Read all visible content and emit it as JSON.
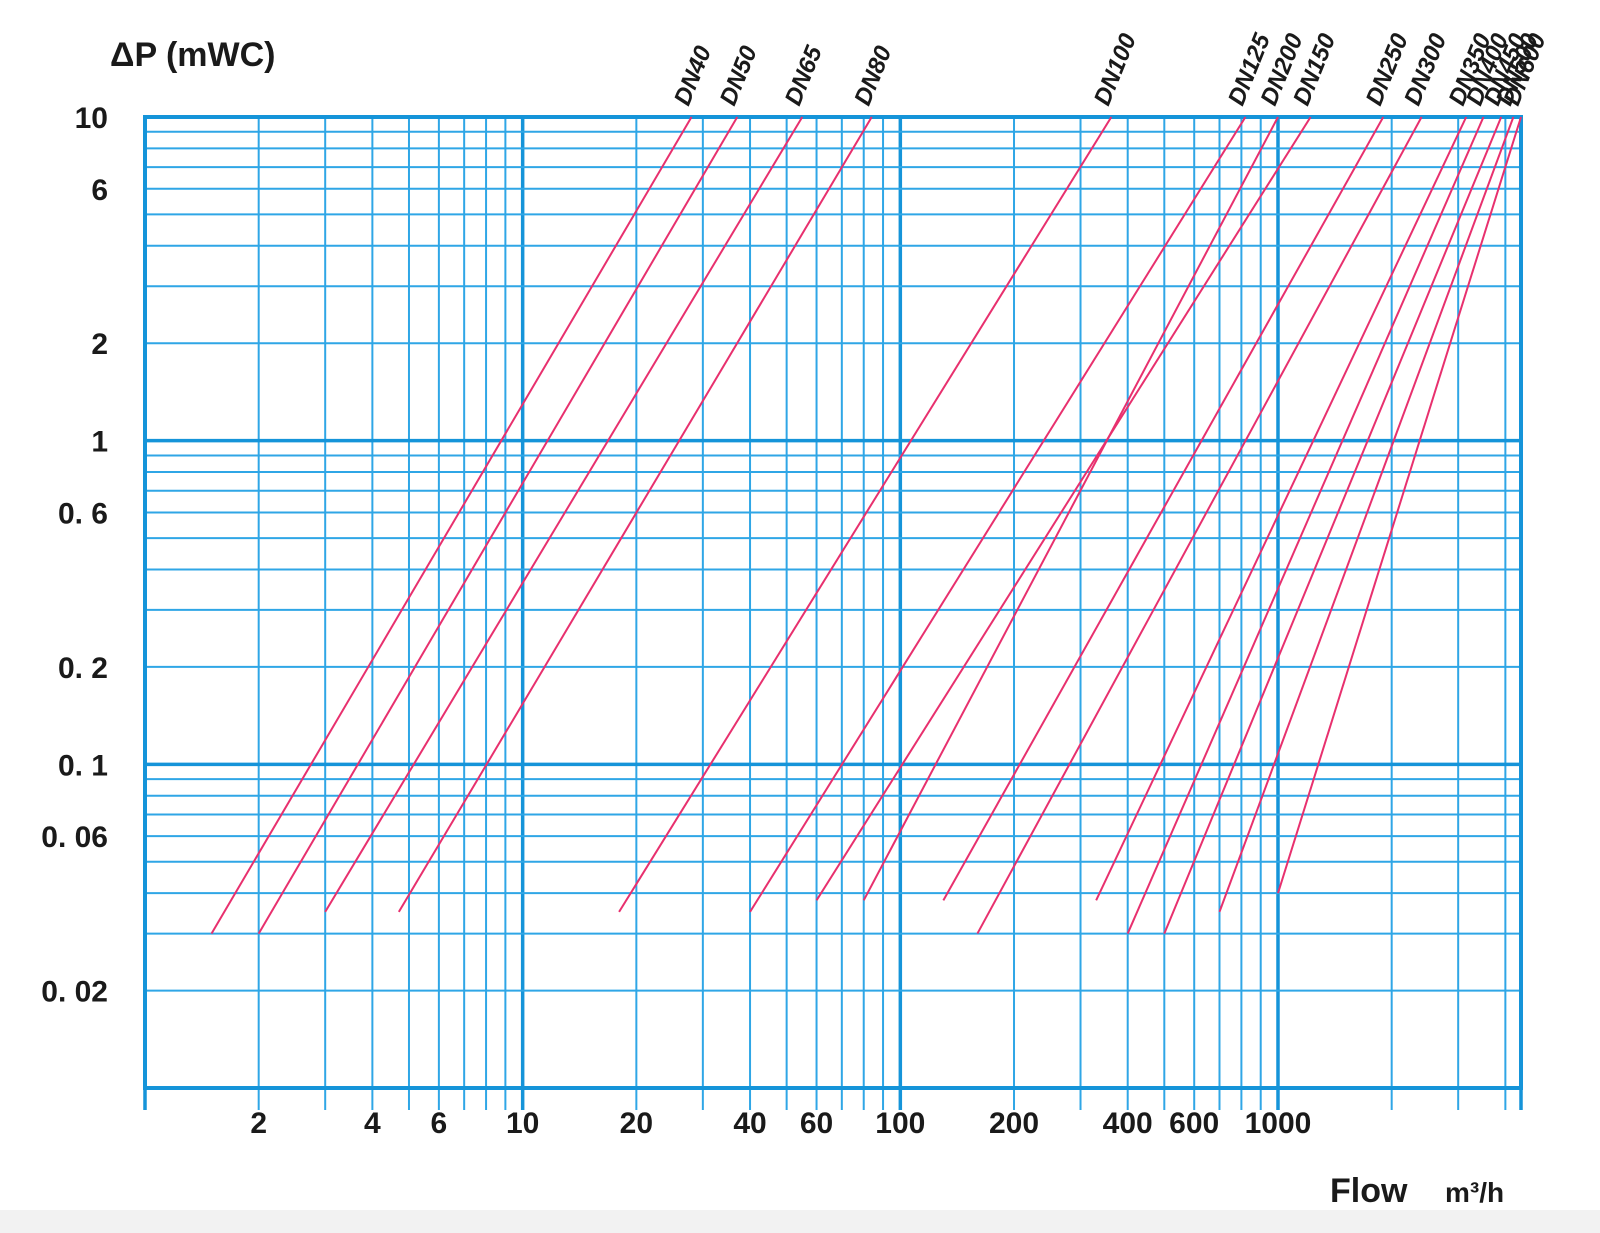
{
  "chart_data": {
    "type": "line",
    "ylabel": "ΔP (mWC)",
    "xlabel": "Flow",
    "xlabel_unit": "m³/h",
    "x_scale": "log",
    "y_scale": "log",
    "xlim": [
      1,
      4400
    ],
    "ylim": [
      0.01,
      10
    ],
    "grid": true,
    "x_ticks": [
      {
        "value": 2,
        "label": "2"
      },
      {
        "value": 4,
        "label": "4"
      },
      {
        "value": 6,
        "label": "6"
      },
      {
        "value": 10,
        "label": "10"
      },
      {
        "value": 20,
        "label": "20"
      },
      {
        "value": 40,
        "label": "40"
      },
      {
        "value": 60,
        "label": "60"
      },
      {
        "value": 100,
        "label": "100"
      },
      {
        "value": 200,
        "label": "200"
      },
      {
        "value": 400,
        "label": "400"
      },
      {
        "value": 600,
        "label": "600"
      },
      {
        "value": 1000,
        "label": "1000"
      }
    ],
    "y_ticks": [
      {
        "value": 10,
        "label": "10"
      },
      {
        "value": 6,
        "label": "6"
      },
      {
        "value": 2,
        "label": "2"
      },
      {
        "value": 1,
        "label": "1"
      },
      {
        "value": 0.6,
        "label": "0. 6"
      },
      {
        "value": 0.2,
        "label": "0. 2"
      },
      {
        "value": 0.1,
        "label": "0. 1"
      },
      {
        "value": 0.06,
        "label": "0. 06"
      },
      {
        "value": 0.02,
        "label": "0. 02"
      }
    ],
    "x_minor_grid": [
      2,
      3,
      4,
      5,
      6,
      7,
      8,
      9,
      20,
      30,
      40,
      50,
      60,
      70,
      80,
      90,
      200,
      300,
      400,
      500,
      600,
      700,
      800,
      900,
      2000,
      3000,
      4000
    ],
    "x_major_grid": [
      1,
      10,
      100,
      1000,
      4400
    ],
    "y_minor_grid": [
      0.02,
      0.03,
      0.04,
      0.05,
      0.06,
      0.07,
      0.08,
      0.09,
      0.2,
      0.3,
      0.4,
      0.5,
      0.6,
      0.7,
      0.8,
      0.9,
      2,
      3,
      4,
      5,
      6,
      7,
      8,
      9
    ],
    "y_major_grid": [
      0.01,
      0.1,
      1,
      10
    ],
    "series": [
      {
        "name": "DN40",
        "points": [
          [
            1.5,
            0.03
          ],
          [
            28,
            10
          ]
        ]
      },
      {
        "name": "DN50",
        "points": [
          [
            2,
            0.03
          ],
          [
            37,
            10
          ]
        ]
      },
      {
        "name": "DN65",
        "points": [
          [
            3,
            0.035
          ],
          [
            55,
            10
          ]
        ]
      },
      {
        "name": "DN80",
        "points": [
          [
            4.7,
            0.035
          ],
          [
            84,
            10
          ]
        ]
      },
      {
        "name": "DN100",
        "points": [
          [
            18,
            0.035
          ],
          [
            362,
            10
          ]
        ]
      },
      {
        "name": "DN125",
        "points": [
          [
            40,
            0.035
          ],
          [
            820,
            10
          ]
        ]
      },
      {
        "name": "DN150",
        "points": [
          [
            60,
            0.038
          ],
          [
            1220,
            10
          ]
        ]
      },
      {
        "name": "DN200",
        "points": [
          [
            80,
            0.038
          ],
          [
            1000,
            10
          ]
        ]
      },
      {
        "name": "DN250",
        "points": [
          [
            130,
            0.038
          ],
          [
            1900,
            10
          ]
        ]
      },
      {
        "name": "DN300",
        "points": [
          [
            160,
            0.03
          ],
          [
            2400,
            10
          ]
        ]
      },
      {
        "name": "DN350",
        "points": [
          [
            330,
            0.038
          ],
          [
            3150,
            10
          ]
        ]
      },
      {
        "name": "DN400",
        "points": [
          [
            400,
            0.03
          ],
          [
            3500,
            10
          ]
        ]
      },
      {
        "name": "DN450",
        "points": [
          [
            500,
            0.03
          ],
          [
            3900,
            10
          ]
        ]
      },
      {
        "name": "DN500",
        "points": [
          [
            700,
            0.035
          ],
          [
            4200,
            10
          ]
        ]
      },
      {
        "name": "DN600",
        "points": [
          [
            1000,
            0.04
          ],
          [
            4400,
            10
          ]
        ]
      }
    ]
  }
}
